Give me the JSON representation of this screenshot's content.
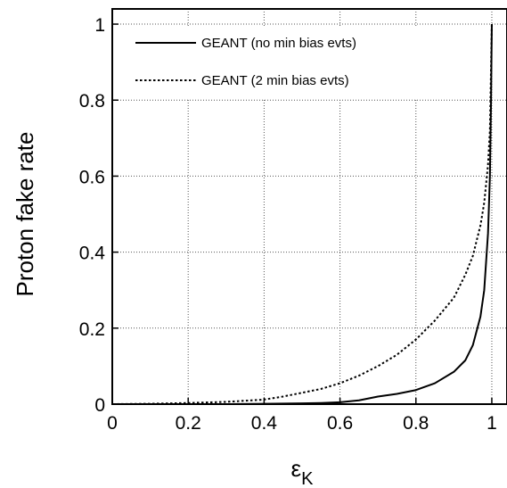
{
  "chart_data": {
    "type": "line",
    "title": "",
    "xlabel": "ε",
    "xlabel_subscript": "K",
    "ylabel": "Proton fake rate",
    "xlim": [
      0,
      1.04
    ],
    "ylim": [
      0,
      1.04
    ],
    "x_ticks": [
      "0",
      "0.2",
      "0.4",
      "0.6",
      "0.8",
      "1"
    ],
    "y_ticks": [
      "0",
      "0.2",
      "0.4",
      "0.6",
      "0.8",
      "1"
    ],
    "grid": true,
    "legend_position": "top-left",
    "series": [
      {
        "name": "GEANT (no min bias evts)",
        "style": "solid",
        "color": "#000000",
        "x": [
          0,
          0.1,
          0.2,
          0.3,
          0.4,
          0.5,
          0.55,
          0.6,
          0.65,
          0.7,
          0.75,
          0.8,
          0.85,
          0.9,
          0.93,
          0.95,
          0.97,
          0.98,
          0.99,
          0.995,
          0.998,
          1.0
        ],
        "y": [
          0,
          0,
          0,
          0,
          0.001,
          0.002,
          0.003,
          0.005,
          0.01,
          0.02,
          0.027,
          0.037,
          0.055,
          0.085,
          0.115,
          0.155,
          0.23,
          0.3,
          0.45,
          0.6,
          0.8,
          1.0
        ]
      },
      {
        "name": "GEANT (2 min bias evts)",
        "style": "dotted",
        "color": "#000000",
        "x": [
          0,
          0.1,
          0.2,
          0.3,
          0.4,
          0.45,
          0.5,
          0.55,
          0.6,
          0.65,
          0.7,
          0.75,
          0.8,
          0.85,
          0.9,
          0.93,
          0.95,
          0.97,
          0.98,
          0.99,
          0.995,
          1.0
        ],
        "y": [
          0,
          0.001,
          0.003,
          0.006,
          0.012,
          0.02,
          0.03,
          0.04,
          0.055,
          0.075,
          0.1,
          0.13,
          0.17,
          0.22,
          0.28,
          0.34,
          0.39,
          0.47,
          0.53,
          0.63,
          0.72,
          1.0
        ]
      }
    ]
  }
}
